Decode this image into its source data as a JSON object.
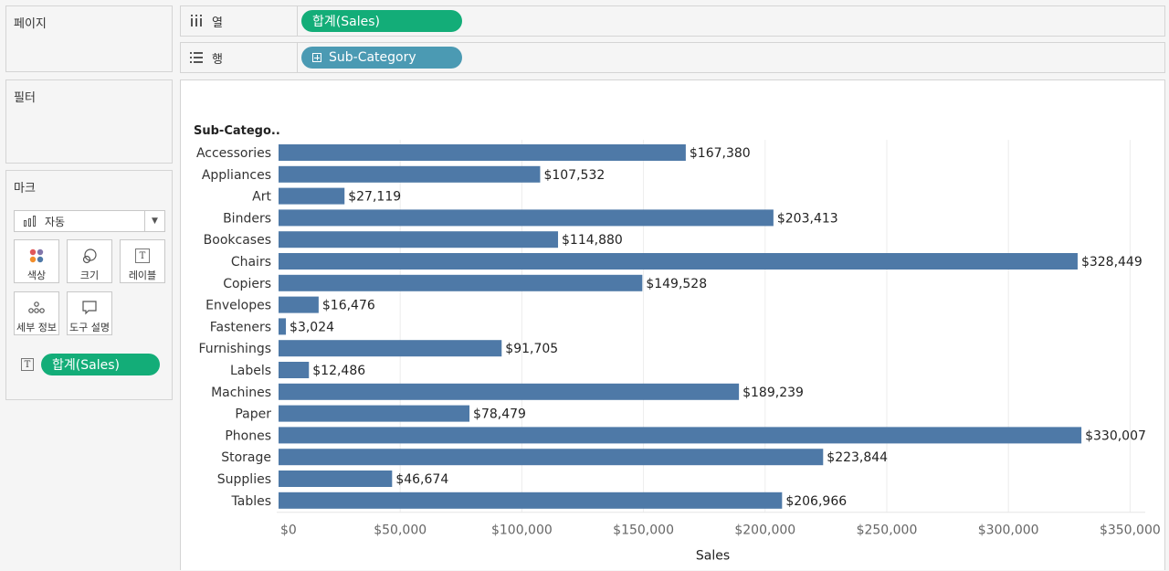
{
  "shelves": {
    "pages_title": "페이지",
    "filters_title": "필터",
    "marks_title": "마크",
    "columns_label": "열",
    "rows_label": "행",
    "columns_pill": "합계(Sales)",
    "rows_pill": "Sub-Category"
  },
  "marks": {
    "mark_type": "자동",
    "cards": {
      "color": "색상",
      "size": "크기",
      "label": "레이블",
      "detail": "세부 정보",
      "tooltip": "도구 설명"
    },
    "text_pill": "합계(Sales)"
  },
  "colors": {
    "bar": "#4e79a7",
    "green_pill": "#13ad78",
    "blue_pill": "#4b9ab3"
  },
  "chart_data": {
    "type": "bar",
    "orientation": "horizontal",
    "row_header": "Sub-Catego..",
    "xlabel": "Sales",
    "xlim": [
      0,
      360000
    ],
    "x_ticks": [
      0,
      50000,
      100000,
      150000,
      200000,
      250000,
      300000,
      350000
    ],
    "x_tick_labels": [
      "$0",
      "$50,000",
      "$100,000",
      "$150,000",
      "$200,000",
      "$250,000",
      "$300,000",
      "$350,000"
    ],
    "categories": [
      "Accessories",
      "Appliances",
      "Art",
      "Binders",
      "Bookcases",
      "Chairs",
      "Copiers",
      "Envelopes",
      "Fasteners",
      "Furnishings",
      "Labels",
      "Machines",
      "Paper",
      "Phones",
      "Storage",
      "Supplies",
      "Tables"
    ],
    "values": [
      167380,
      107532,
      27119,
      203413,
      114880,
      328449,
      149528,
      16476,
      3024,
      91705,
      12486,
      189239,
      78479,
      330007,
      223844,
      46674,
      206966
    ],
    "data_labels": [
      "$167,380",
      "$107,532",
      "$27,119",
      "$203,413",
      "$114,880",
      "$328,449",
      "$149,528",
      "$16,476",
      "$3,024",
      "$91,705",
      "$12,486",
      "$189,239",
      "$78,479",
      "$330,007",
      "$223,844",
      "$46,674",
      "$206,966"
    ],
    "grid": true
  }
}
